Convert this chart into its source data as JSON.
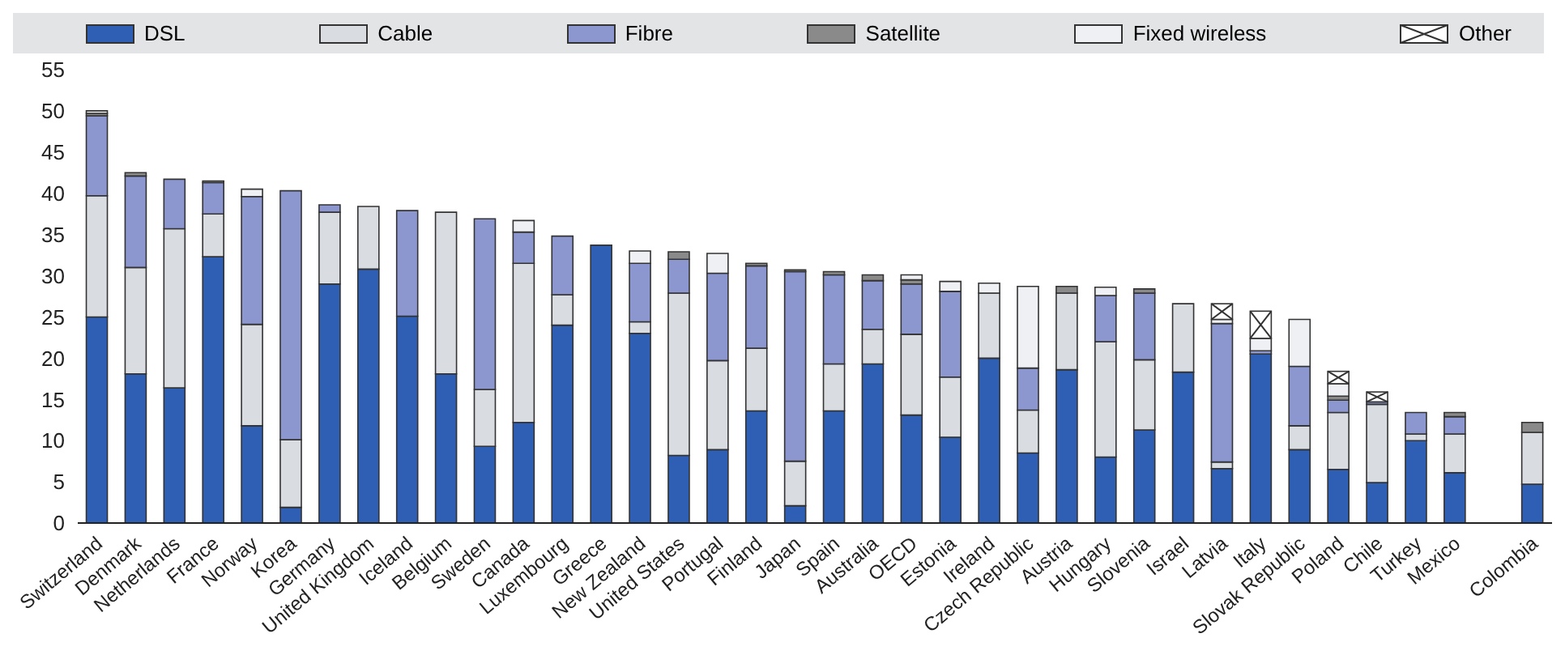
{
  "chart_data": {
    "type": "bar",
    "stacked": true,
    "legend": "top",
    "grid": false,
    "categories": [
      "Switzerland",
      "Denmark",
      "Netherlands",
      "France",
      "Norway",
      "Korea",
      "Germany",
      "United Kingdom",
      "Iceland",
      "Belgium",
      "Sweden",
      "Canada",
      "Luxembourg",
      "Greece",
      "New Zealand",
      "United States",
      "Portugal",
      "Finland",
      "Japan",
      "Spain",
      "Australia",
      "OECD",
      "Estonia",
      "Ireland",
      "Czech Republic",
      "Austria",
      "Hungary",
      "Slovenia",
      "Israel",
      "Latvia",
      "Italy",
      "Slovak Republic",
      "Poland",
      "Chile",
      "Turkey",
      "Mexico",
      null,
      "Colombia"
    ],
    "ylim": [
      0,
      55
    ],
    "yticks": [
      0,
      5,
      10,
      15,
      20,
      25,
      30,
      35,
      40,
      45,
      50,
      55
    ],
    "series": [
      {
        "name": "DSL",
        "color": "#2e5fb5",
        "values": [
          25,
          18.1,
          16.4,
          32.3,
          11.8,
          1.9,
          29,
          30.8,
          25.1,
          18.1,
          9.3,
          12.2,
          24,
          33.7,
          23,
          8.2,
          8.9,
          13.6,
          2.1,
          13.6,
          19.3,
          13.1,
          10.4,
          20,
          8.5,
          18.6,
          8,
          11.3,
          18.3,
          6.6,
          20.5,
          8.9,
          6.5,
          4.9,
          10,
          6.1,
          null,
          4.7
        ]
      },
      {
        "name": "Cable",
        "color": "#d9dce0",
        "values": [
          14.7,
          12.9,
          19.3,
          5.2,
          12.3,
          8.2,
          8.7,
          7.6,
          0,
          19.6,
          6.9,
          19.3,
          3.7,
          0,
          1.4,
          19.7,
          10.8,
          7.6,
          5.4,
          5.7,
          4.2,
          9.8,
          7.3,
          7.9,
          5.2,
          9.3,
          14,
          8.5,
          8.3,
          0.8,
          0,
          2.9,
          6.9,
          9.5,
          0.8,
          4.7,
          null,
          6.3
        ]
      },
      {
        "name": "Fibre",
        "color": "#8c97d0",
        "values": [
          9.7,
          11.1,
          6,
          3.8,
          15.5,
          30.2,
          0.9,
          0,
          12.8,
          0,
          20.7,
          3.8,
          7.1,
          0,
          7.1,
          4.1,
          10.6,
          10,
          23,
          10.8,
          5.9,
          6.1,
          10.4,
          0,
          5.1,
          0,
          5.6,
          8.1,
          0,
          16.8,
          0.4,
          7.2,
          1.5,
          0.3,
          2.6,
          2.1,
          null,
          0
        ]
      },
      {
        "name": "Satellite",
        "color": "#8a8a8a",
        "values": [
          0.3,
          0.4,
          0,
          0.2,
          0,
          0,
          0,
          0,
          0,
          0,
          0,
          0,
          0,
          0,
          0,
          0.9,
          0,
          0.3,
          0.2,
          0.4,
          0.7,
          0.5,
          0,
          0,
          0,
          0.8,
          0,
          0.5,
          0,
          0,
          0,
          0,
          0.5,
          0,
          0,
          0.5,
          null,
          1.2
        ]
      },
      {
        "name": "Fixed wireless",
        "color": "#eef0f3",
        "values": [
          0.3,
          0,
          0,
          0,
          0.9,
          0,
          0,
          0,
          0,
          0,
          0,
          1.4,
          0,
          0,
          1.5,
          0,
          2.4,
          0,
          0,
          0,
          0,
          0.6,
          1.2,
          1.2,
          9.9,
          0,
          1,
          0,
          0,
          0.5,
          1.5,
          5.7,
          1.5,
          0,
          0,
          0,
          null,
          0
        ]
      },
      {
        "name": "Other",
        "color": "#ffffff",
        "values": [
          0,
          0,
          0,
          0,
          0,
          0,
          0,
          0,
          0,
          0,
          0,
          0,
          0,
          0,
          0,
          0,
          0,
          0,
          0,
          0,
          0,
          0,
          0,
          0,
          0,
          0,
          0,
          0,
          0,
          1.9,
          3.3,
          0,
          1.5,
          1.2,
          0,
          0,
          null,
          0
        ]
      }
    ]
  }
}
